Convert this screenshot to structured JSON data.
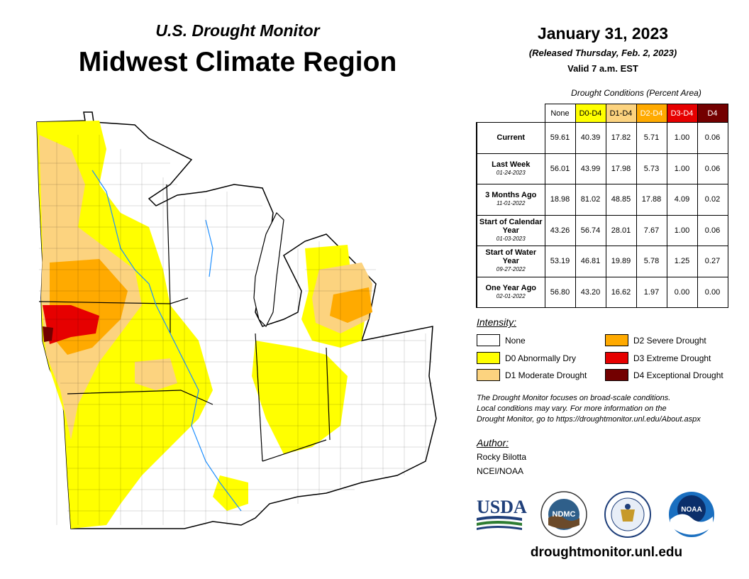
{
  "header": {
    "subtitle": "U.S. Drought Monitor",
    "title": "Midwest Climate Region",
    "date": "January 31, 2023",
    "released": "(Released Thursday, Feb. 2, 2023)",
    "valid": "Valid 7 a.m. EST"
  },
  "table": {
    "caption": "Drought Conditions (Percent Area)",
    "columns": [
      {
        "label": "None",
        "color": "#ffffff",
        "text_color": "#000000"
      },
      {
        "label": "D0-D4",
        "color": "#ffff00",
        "text_color": "#000000"
      },
      {
        "label": "D1-D4",
        "color": "#fcd37f",
        "text_color": "#000000"
      },
      {
        "label": "D2-D4",
        "color": "#ffaa00",
        "text_color": "#ffffff"
      },
      {
        "label": "D3-D4",
        "color": "#e60000",
        "text_color": "#ffffff"
      },
      {
        "label": "D4",
        "color": "#730000",
        "text_color": "#ffffff"
      }
    ],
    "rows": [
      {
        "label": "Current",
        "date": "",
        "values": [
          "59.61",
          "40.39",
          "17.82",
          "5.71",
          "1.00",
          "0.06"
        ]
      },
      {
        "label": "Last Week",
        "date": "01-24-2023",
        "values": [
          "56.01",
          "43.99",
          "17.98",
          "5.73",
          "1.00",
          "0.06"
        ]
      },
      {
        "label": "3 Months Ago",
        "date": "11-01-2022",
        "values": [
          "18.98",
          "81.02",
          "48.85",
          "17.88",
          "4.09",
          "0.02"
        ]
      },
      {
        "label": "Start of Calendar Year",
        "date": "01-03-2023",
        "values": [
          "43.26",
          "56.74",
          "28.01",
          "7.67",
          "1.00",
          "0.06"
        ]
      },
      {
        "label": "Start of Water Year",
        "date": "09-27-2022",
        "values": [
          "53.19",
          "46.81",
          "19.89",
          "5.78",
          "1.25",
          "0.27"
        ]
      },
      {
        "label": "One Year Ago",
        "date": "02-01-2022",
        "values": [
          "56.80",
          "43.20",
          "16.62",
          "1.97",
          "0.00",
          "0.00"
        ]
      }
    ]
  },
  "legend": {
    "heading": "Intensity:",
    "items": [
      {
        "label": "None",
        "color": "#ffffff"
      },
      {
        "label": "D0 Abnormally Dry",
        "color": "#ffff00"
      },
      {
        "label": "D1 Moderate Drought",
        "color": "#fcd37f"
      },
      {
        "label": "D2 Severe Drought",
        "color": "#ffaa00"
      },
      {
        "label": "D3 Extreme Drought",
        "color": "#e60000"
      },
      {
        "label": "D4 Exceptional Drought",
        "color": "#730000"
      }
    ]
  },
  "note": {
    "line1": "The Drought Monitor focuses on broad-scale conditions.",
    "line2": "Local conditions may vary. For more information on the",
    "line3": "Drought Monitor, go to https://droughtmonitor.unl.edu/About.aspx"
  },
  "author": {
    "heading": "Author:",
    "name": "Rocky Bilotta",
    "org": "NCEI/NOAA"
  },
  "logos": {
    "usda": "USDA",
    "ndmc": "NDMC",
    "noaa": "NOAA"
  },
  "footer": {
    "url": "droughtmonitor.unl.edu"
  }
}
